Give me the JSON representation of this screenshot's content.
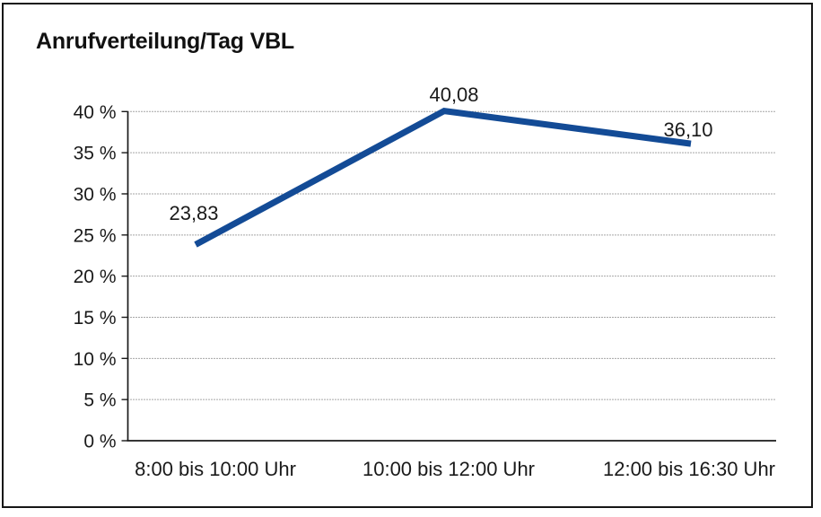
{
  "chart_data": {
    "type": "line",
    "title": "Anrufverteilung/Tag VBL",
    "categories": [
      "8:00 bis 10:00 Uhr",
      "10:00 bis 12:00 Uhr",
      "12:00 bis 16:30 Uhr"
    ],
    "values": [
      23.83,
      40.08,
      36.1
    ],
    "value_labels": [
      "23,83",
      "40,08",
      "36,10"
    ],
    "xlabel": "",
    "ylabel": "",
    "ylim": [
      0,
      40
    ],
    "ytick_step": 5,
    "ytick_labels": [
      "0 %",
      "5 %",
      "10 %",
      "15 %",
      "20 %",
      "25 %",
      "30 %",
      "35 %",
      "40 %"
    ],
    "grid": "horizontal-dotted",
    "legend": "none",
    "line_color": "#134B96",
    "axis_color": "#1a1a1a",
    "border_color": "#161616"
  }
}
